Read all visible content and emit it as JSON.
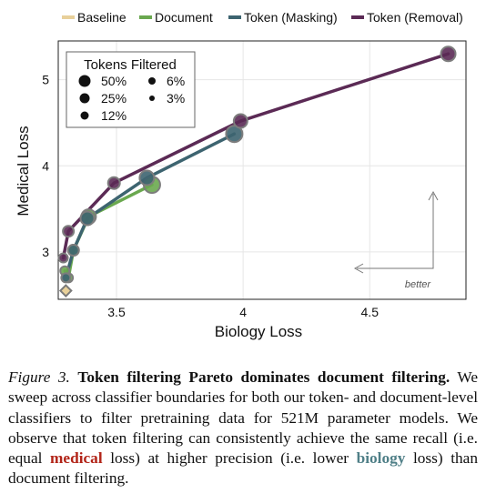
{
  "chart_data": {
    "type": "line",
    "xlabel": "Biology Loss",
    "ylabel": "Medical Loss",
    "xlim": [
      3.27,
      4.88
    ],
    "ylim": [
      2.45,
      5.45
    ],
    "xticks": [
      3.5,
      4,
      4.5
    ],
    "xtick_labels": [
      "3.5",
      "4",
      "4.5"
    ],
    "yticks": [
      3,
      4,
      5
    ],
    "ytick_labels": [
      "3",
      "4",
      "5"
    ],
    "grid": true,
    "legend_position": "top",
    "series": [
      {
        "name": "Baseline",
        "color": "#e8d09a",
        "marker": "diamond",
        "points": [
          {
            "x": 3.3,
            "y": 2.55,
            "r": 6
          }
        ]
      },
      {
        "name": "Document",
        "color": "#6aa84f",
        "points": [
          {
            "x": 3.296,
            "y": 2.78,
            "r": 5
          },
          {
            "x": 3.31,
            "y": 2.7,
            "r": 5
          },
          {
            "x": 3.33,
            "y": 3.02,
            "r": 6
          },
          {
            "x": 3.39,
            "y": 3.41,
            "r": 8
          },
          {
            "x": 3.64,
            "y": 3.78,
            "r": 9
          }
        ]
      },
      {
        "name": "Token (Masking)",
        "color": "#3d6470",
        "points": [
          {
            "x": 3.3,
            "y": 2.7,
            "r": 5
          },
          {
            "x": 3.33,
            "y": 3.02,
            "r": 6
          },
          {
            "x": 3.385,
            "y": 3.39,
            "r": 7.5
          },
          {
            "x": 3.62,
            "y": 3.86,
            "r": 8
          },
          {
            "x": 3.965,
            "y": 4.37,
            "r": 9
          }
        ]
      },
      {
        "name": "Token (Removal)",
        "color": "#5b2a55",
        "points": [
          {
            "x": 3.29,
            "y": 2.93,
            "r": 5
          },
          {
            "x": 3.31,
            "y": 3.24,
            "r": 6
          },
          {
            "x": 3.49,
            "y": 3.8,
            "r": 6.5
          },
          {
            "x": 3.99,
            "y": 4.52,
            "r": 7.5
          },
          {
            "x": 4.81,
            "y": 5.3,
            "r": 8
          }
        ]
      }
    ],
    "size_legend": {
      "title": "Tokens Filtered",
      "entries": [
        {
          "label": "50%",
          "r": 6.5
        },
        {
          "label": "25%",
          "r": 5.5
        },
        {
          "label": "12%",
          "r": 4.5
        },
        {
          "label": "6%",
          "r": 4
        },
        {
          "label": "3%",
          "r": 3
        }
      ]
    },
    "annotation": "better"
  },
  "caption": {
    "figure_number": "Figure 3.",
    "title": "Token filtering Pareto dominates document filtering.",
    "text_1": "We sweep across classifier boundaries for both our token- and document-level classifiers to filter pretraining data for 521M parameter models. We observe that token filtering can consistently achieve the same recall (i.e. equal",
    "medical_word": "medical",
    "text_2": "loss) at higher precision (i.e. lower",
    "biology_word": "biology",
    "text_3": "loss) than document filtering."
  }
}
